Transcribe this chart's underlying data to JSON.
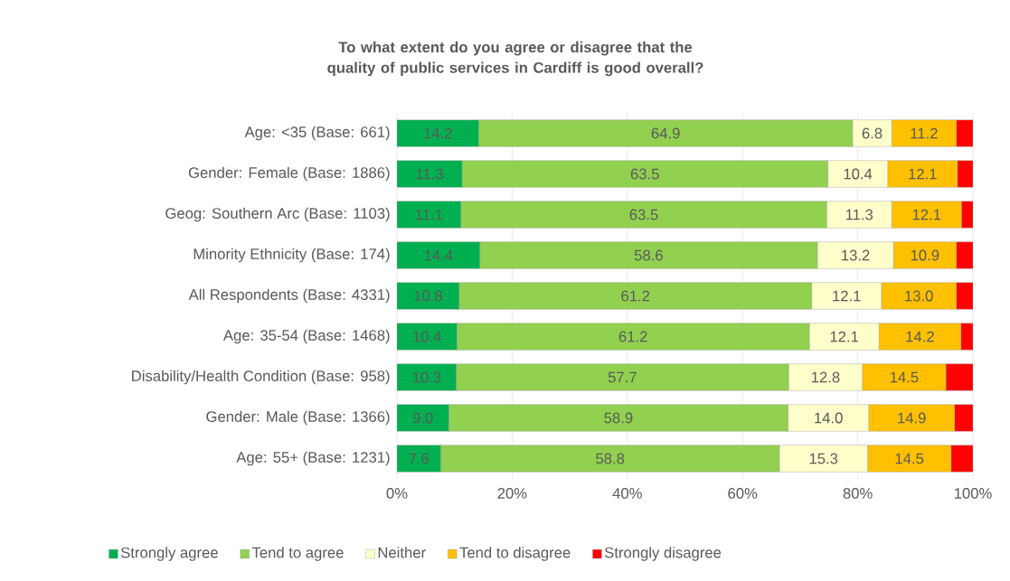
{
  "chart_data": {
    "type": "bar",
    "orientation": "horizontal",
    "stacked": true,
    "title": "To what extent do you agree or disagree that the quality of public services in Cardiff is good overall?",
    "categories": [
      "Age: <35 (Base: 661)",
      "Gender: Female (Base: 1886)",
      "Geog: Southern Arc (Base: 1103)",
      "Minority Ethnicity (Base: 174)",
      "All Respondents (Base: 4331)",
      "Age: 35-54 (Base: 1468)",
      "Disability/Health Condition (Base: 958)",
      "Gender: Male (Base: 1366)",
      "Age: 55+ (Base: 1231)"
    ],
    "series": [
      {
        "name": "Strongly agree",
        "color": "#00b050",
        "values": [
          14.2,
          11.3,
          11.1,
          14.4,
          10.8,
          10.4,
          10.3,
          9.0,
          7.6
        ],
        "value_labels": [
          "14.2",
          "11.3",
          "11.1",
          "14.4",
          "10.8",
          "10.4",
          "10.3",
          "9.0",
          "7.6"
        ]
      },
      {
        "name": "Tend to agree",
        "color": "#92d050",
        "values": [
          64.9,
          63.5,
          63.5,
          58.6,
          61.2,
          61.2,
          57.7,
          58.9,
          58.8
        ],
        "value_labels": [
          "64.9",
          "63.5",
          "63.5",
          "58.6",
          "61.2",
          "61.2",
          "57.7",
          "58.9",
          "58.8"
        ]
      },
      {
        "name": "Neither",
        "color": "#ffffcc",
        "values": [
          6.8,
          10.4,
          11.3,
          13.2,
          12.1,
          12.1,
          12.8,
          14.0,
          15.3
        ],
        "value_labels": [
          "6.8",
          "10.4",
          "11.3",
          "13.2",
          "12.1",
          "12.1",
          "12.8",
          "14.0",
          "15.3"
        ]
      },
      {
        "name": "Tend to disagree",
        "color": "#ffc000",
        "values": [
          11.2,
          12.1,
          12.1,
          10.9,
          13.0,
          14.2,
          14.5,
          14.9,
          14.5
        ],
        "value_labels": [
          "11.2",
          "12.1",
          "12.1",
          "10.9",
          "13.0",
          "14.2",
          "14.5",
          "14.9",
          "14.5"
        ]
      },
      {
        "name": "Strongly disagree",
        "color": "#ff0000",
        "values": [
          2.9,
          2.7,
          2.0,
          2.9,
          2.9,
          2.1,
          4.7,
          3.2,
          3.8
        ]
      }
    ],
    "xlim": [
      0,
      100
    ],
    "xticks": [
      {
        "value": 0,
        "label": "0%"
      },
      {
        "value": 20,
        "label": "20%"
      },
      {
        "value": 40,
        "label": "40%"
      },
      {
        "value": 60,
        "label": "60%"
      },
      {
        "value": 80,
        "label": "80%"
      },
      {
        "value": 100,
        "label": "100%"
      }
    ],
    "grid": "x",
    "legend": "bottom"
  }
}
